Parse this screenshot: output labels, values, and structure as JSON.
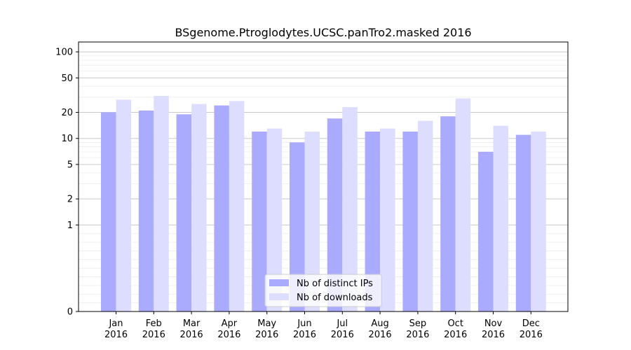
{
  "chart_data": {
    "type": "bar",
    "title": "BSgenome.Ptroglodytes.UCSC.panTro2.masked 2016",
    "xlabel": "",
    "ylabel": "",
    "yscale": "symlog",
    "ylim": [
      0,
      130
    ],
    "yticks": [
      0,
      1,
      2,
      5,
      10,
      20,
      50,
      100
    ],
    "grid": true,
    "legend_position": "bottom-center",
    "categories": [
      [
        "Jan",
        "2016"
      ],
      [
        "Feb",
        "2016"
      ],
      [
        "Mar",
        "2016"
      ],
      [
        "Apr",
        "2016"
      ],
      [
        "May",
        "2016"
      ],
      [
        "Jun",
        "2016"
      ],
      [
        "Jul",
        "2016"
      ],
      [
        "Aug",
        "2016"
      ],
      [
        "Sep",
        "2016"
      ],
      [
        "Oct",
        "2016"
      ],
      [
        "Nov",
        "2016"
      ],
      [
        "Dec",
        "2016"
      ]
    ],
    "series": [
      {
        "name": "Nb of distinct IPs",
        "color": "#aaaaff",
        "values": [
          20,
          21,
          19,
          24,
          12,
          9,
          17,
          12,
          12,
          18,
          7,
          11
        ]
      },
      {
        "name": "Nb of downloads",
        "color": "#ddddff",
        "values": [
          28,
          31,
          25,
          27,
          13,
          12,
          23,
          13,
          16,
          29,
          14,
          12
        ]
      }
    ]
  }
}
